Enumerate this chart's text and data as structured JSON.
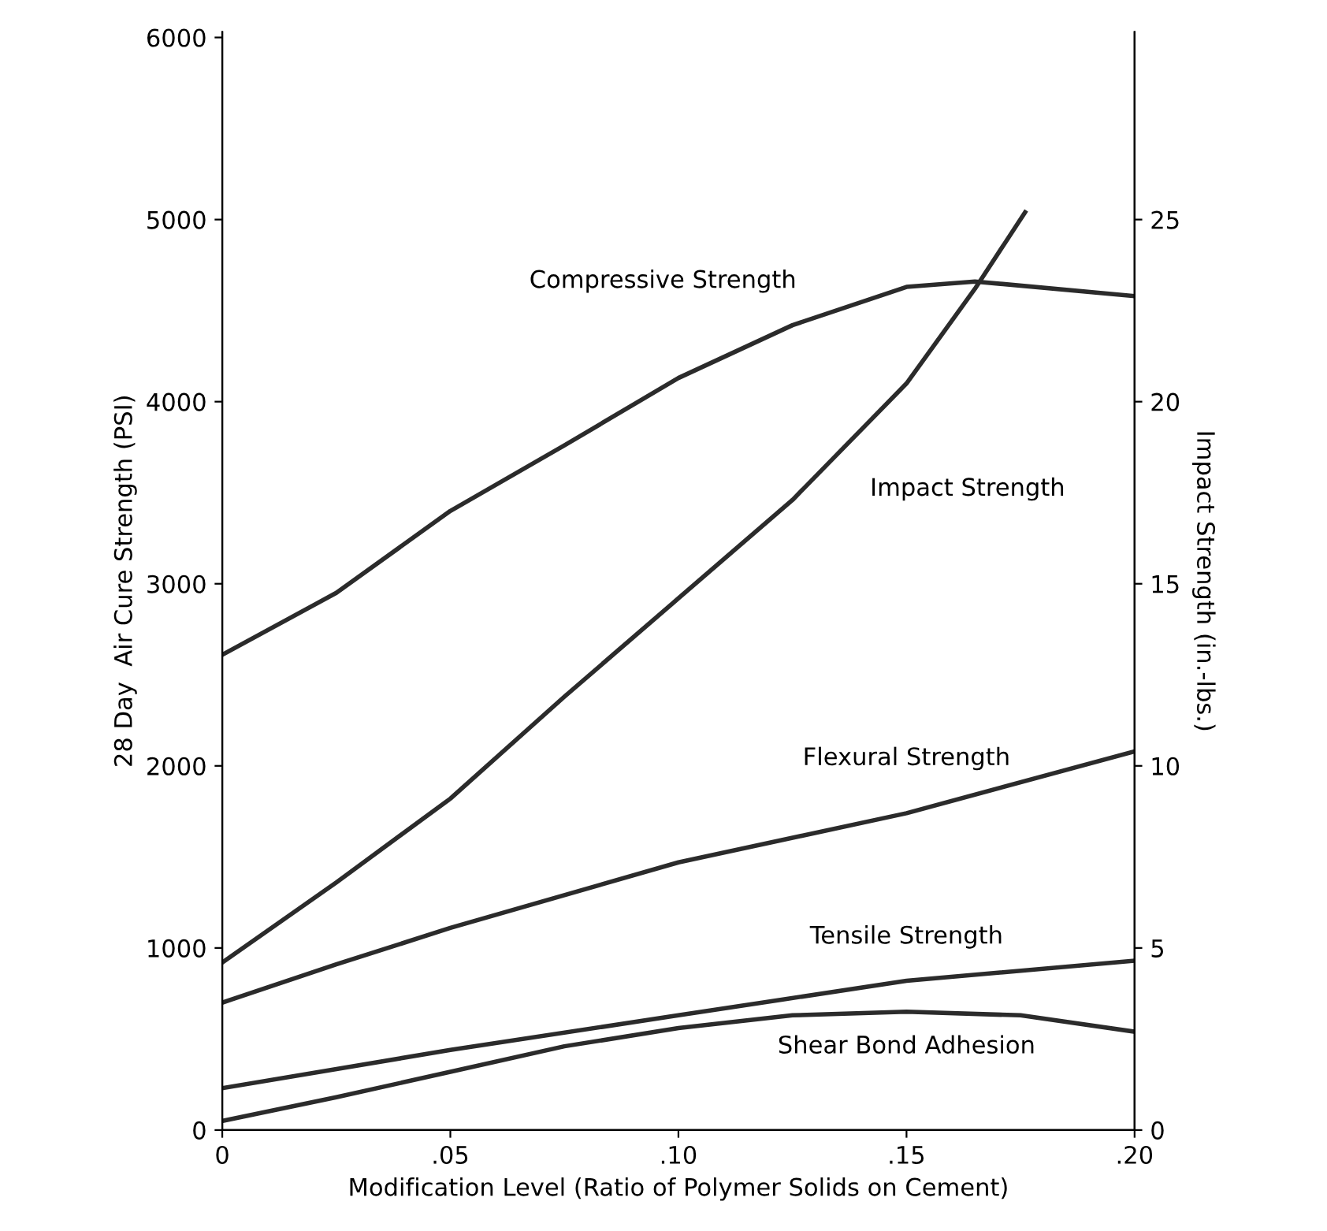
{
  "chart_data": {
    "type": "line",
    "xlabel": "Modification Level (Ratio of Polymer Solids on Cement)",
    "ylabel": "28 Day  Air Cure Strength (PSI)",
    "y2label": "Impact Strength (in.-lbs.)",
    "xlim": [
      0,
      0.2
    ],
    "xticks": [
      0,
      {
        "value": 0.05,
        "label": ".05"
      },
      {
        "value": 0.1,
        "label": ".10"
      },
      {
        "value": 0.15,
        "label": ".15"
      },
      {
        "value": 0.2,
        "label": ".20"
      }
    ],
    "ylim": [
      0,
      6030
    ],
    "yticks": [
      0,
      1000,
      2000,
      3000,
      4000,
      5000,
      6000
    ],
    "y2lim": [
      0,
      30.15
    ],
    "y2ticks": [
      0,
      5,
      10,
      15,
      20,
      25
    ],
    "grid": false,
    "legend": false,
    "marker": "none",
    "line_style": "solid",
    "series": [
      {
        "name": "Compressive Strength",
        "color": "#2b2b2b",
        "x": [
          0,
          0.025,
          0.05,
          0.075,
          0.1,
          0.125,
          0.15,
          0.165,
          0.2
        ],
        "values": [
          2610,
          2950,
          3400,
          3760,
          4130,
          4420,
          4630,
          4660,
          4580
        ]
      },
      {
        "name": "Impact Strength",
        "color": "#2b2b2b",
        "axis": "y2",
        "x": [
          0,
          0.025,
          0.05,
          0.075,
          0.1,
          0.125,
          0.15,
          0.165,
          0.176
        ],
        "values": [
          4.6,
          6.8,
          9.1,
          11.9,
          14.6,
          17.3,
          20.5,
          23.1,
          25.2
        ]
      },
      {
        "name": "Flexural Strength",
        "color": "#2b2b2b",
        "x": [
          0,
          0.025,
          0.05,
          0.1,
          0.15,
          0.2
        ],
        "values": [
          700,
          910,
          1110,
          1470,
          1740,
          2080
        ]
      },
      {
        "name": "Tensile Strength",
        "color": "#2b2b2b",
        "x": [
          0,
          0.05,
          0.1,
          0.15,
          0.2
        ],
        "values": [
          230,
          440,
          630,
          820,
          930
        ]
      },
      {
        "name": "Shear Bond Adhesion",
        "color": "#2b2b2b",
        "x": [
          0,
          0.025,
          0.05,
          0.075,
          0.1,
          0.125,
          0.15,
          0.175,
          0.2
        ],
        "values": [
          50,
          180,
          320,
          460,
          560,
          630,
          650,
          630,
          540
        ]
      }
    ]
  }
}
